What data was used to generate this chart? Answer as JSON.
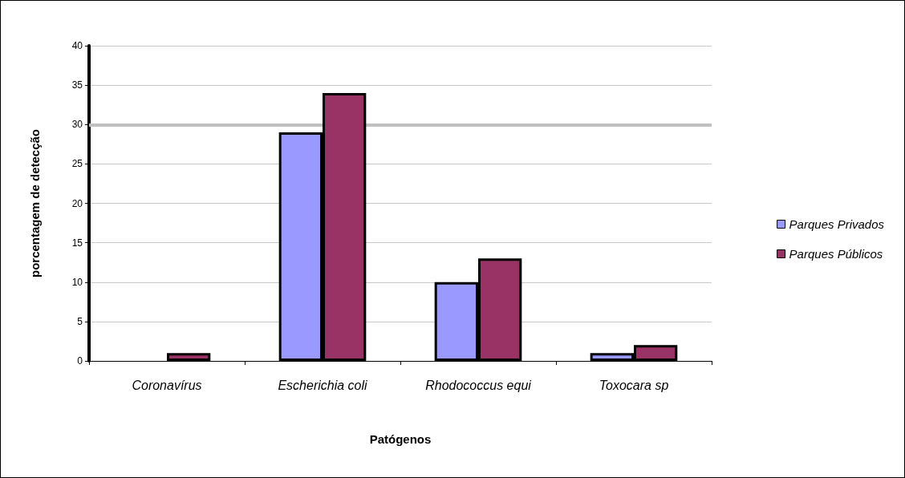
{
  "chart_data": {
    "type": "bar",
    "xlabel": "Patógenos",
    "ylabel": "porcentagem de detecção",
    "categories": [
      "Coronavírus",
      "Escherichia coli",
      "Rhodococcus equi",
      "Toxocara sp"
    ],
    "series": [
      {
        "name": "Parques Privados",
        "color": "#9999ff",
        "values": [
          0,
          29,
          10,
          1
        ]
      },
      {
        "name": "Parques Públicos",
        "color": "#993366",
        "values": [
          1,
          34,
          13,
          2
        ]
      }
    ],
    "ylim": [
      0,
      40
    ],
    "yticks": [
      0,
      5,
      10,
      15,
      20,
      25,
      30,
      35,
      40
    ],
    "grid": "y",
    "legend": "right",
    "ref_lines": [
      {
        "axis": "y",
        "value": 30,
        "color": "#c0c0c0"
      }
    ]
  }
}
